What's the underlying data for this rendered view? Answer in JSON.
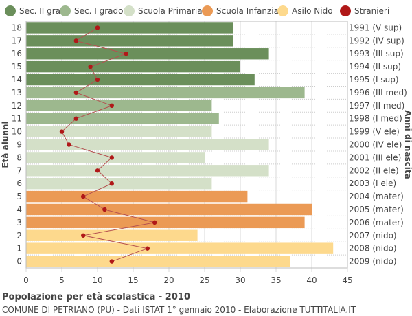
{
  "chart_data": {
    "type": "bar",
    "orientation": "horizontal",
    "title": "Popolazione per età scolastica - 2010",
    "subtitle": "COMUNE DI PETRIANO (PU) - Dati ISTAT 1° gennaio 2010 - Elaborazione TUTTITALIA.IT",
    "ylabel": "Età alunni",
    "ylabel_right": "Anni di nascita",
    "xlim": [
      0,
      45
    ],
    "xticks": [
      0,
      5,
      10,
      15,
      20,
      25,
      30,
      35,
      40,
      45
    ],
    "grid": true,
    "legend_position": "top",
    "legend": [
      {
        "name": "Sec. II grado",
        "color": "#6b8f5b"
      },
      {
        "name": "Sec. I grado",
        "color": "#9db88e"
      },
      {
        "name": "Scuola Primaria",
        "color": "#d4e0c8"
      },
      {
        "name": "Scuola Infanzia",
        "color": "#eb9a55"
      },
      {
        "name": "Asilo Nido",
        "color": "#fdd98d"
      },
      {
        "name": "Stranieri",
        "color": "#b01818"
      }
    ],
    "rows": [
      {
        "age": "18",
        "birth": "1991 (V sup)",
        "value": 29,
        "stranieri": 10,
        "group": 0
      },
      {
        "age": "17",
        "birth": "1992 (IV sup)",
        "value": 29,
        "stranieri": 7,
        "group": 0
      },
      {
        "age": "16",
        "birth": "1993 (III sup)",
        "value": 34,
        "stranieri": 14,
        "group": 0
      },
      {
        "age": "15",
        "birth": "1994 (II sup)",
        "value": 30,
        "stranieri": 9,
        "group": 0
      },
      {
        "age": "14",
        "birth": "1995 (I sup)",
        "value": 32,
        "stranieri": 10,
        "group": 0
      },
      {
        "age": "13",
        "birth": "1996 (III med)",
        "value": 39,
        "stranieri": 7,
        "group": 1
      },
      {
        "age": "12",
        "birth": "1997 (II med)",
        "value": 26,
        "stranieri": 12,
        "group": 1
      },
      {
        "age": "11",
        "birth": "1998 (I med)",
        "value": 27,
        "stranieri": 7,
        "group": 1
      },
      {
        "age": "10",
        "birth": "1999 (V ele)",
        "value": 26,
        "stranieri": 5,
        "group": 2
      },
      {
        "age": "9",
        "birth": "2000 (IV ele)",
        "value": 34,
        "stranieri": 6,
        "group": 2
      },
      {
        "age": "8",
        "birth": "2001 (III ele)",
        "value": 25,
        "stranieri": 12,
        "group": 2
      },
      {
        "age": "7",
        "birth": "2002 (II ele)",
        "value": 34,
        "stranieri": 10,
        "group": 2
      },
      {
        "age": "6",
        "birth": "2003 (I ele)",
        "value": 26,
        "stranieri": 12,
        "group": 2
      },
      {
        "age": "5",
        "birth": "2004 (mater)",
        "value": 31,
        "stranieri": 8,
        "group": 3
      },
      {
        "age": "4",
        "birth": "2005 (mater)",
        "value": 40,
        "stranieri": 11,
        "group": 3
      },
      {
        "age": "3",
        "birth": "2006 (mater)",
        "value": 39,
        "stranieri": 18,
        "group": 3
      },
      {
        "age": "2",
        "birth": "2007 (nido)",
        "value": 24,
        "stranieri": 8,
        "group": 4
      },
      {
        "age": "1",
        "birth": "2008 (nido)",
        "value": 43,
        "stranieri": 17,
        "group": 4
      },
      {
        "age": "0",
        "birth": "2009 (nido)",
        "value": 37,
        "stranieri": 12,
        "group": 4
      }
    ]
  }
}
